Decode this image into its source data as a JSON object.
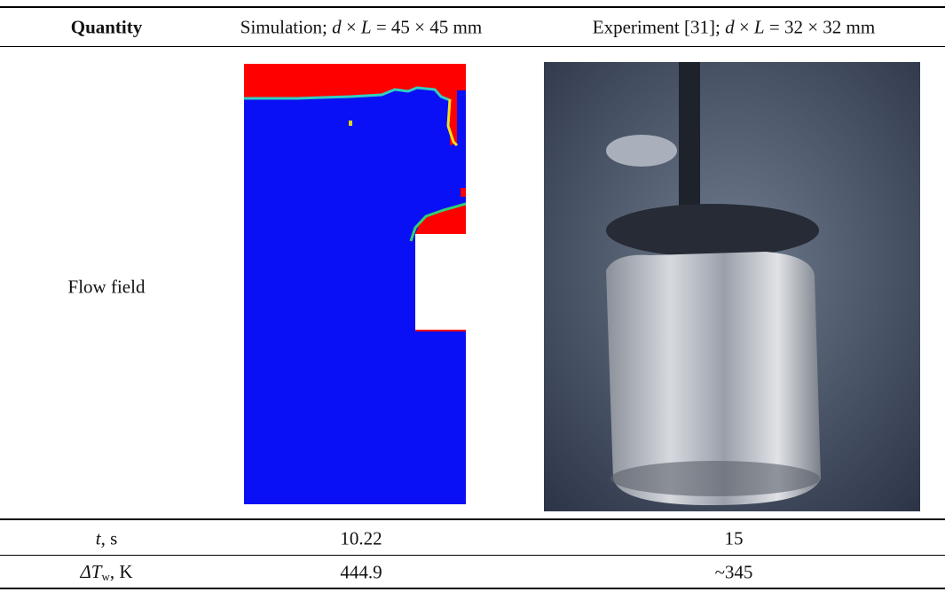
{
  "table": {
    "header": [
      [
        "Quantity"
      ],
      [
        "Simulation; ",
        "d",
        " × ",
        "L",
        " = 45 × 45 mm"
      ],
      [
        "Experiment [31]; ",
        "d",
        " × ",
        "L",
        " = 32 × 32 mm"
      ]
    ],
    "rows": [
      {
        "quantity": [
          "Flow field"
        ]
      },
      {
        "quantity": [
          "t",
          ", s"
        ],
        "simulation": "10.22",
        "experiment": "15"
      },
      {
        "quantity": [
          "ΔT",
          "w",
          ", K"
        ],
        "simulation": "444.9",
        "experiment": "~345"
      }
    ]
  }
}
